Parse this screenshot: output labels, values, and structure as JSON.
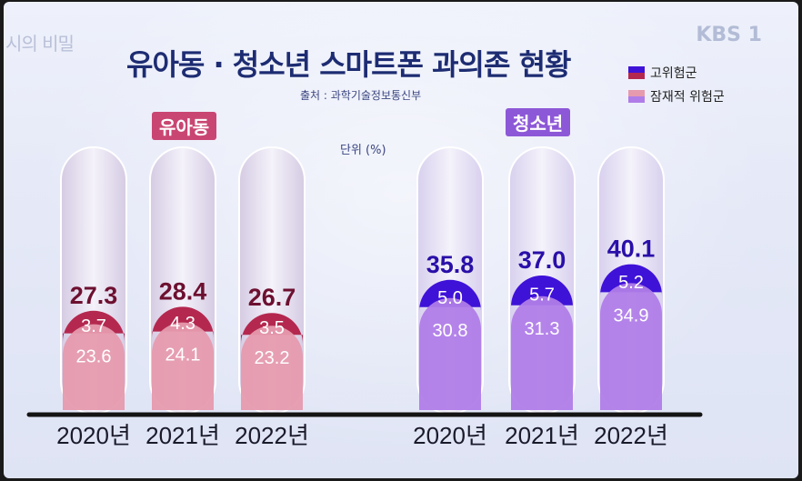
{
  "watermark": {
    "program": "시의 비밀",
    "broadcaster": "KBS 1"
  },
  "header": {
    "title": "유아동 · 청소년 스마트폰 과의존 현황",
    "source": "출처 : 과학기술정보통신부",
    "unit": "단위 (%)"
  },
  "legend": {
    "high_risk": "고위험군",
    "latent_risk": "잠재적 위험군"
  },
  "colors": {
    "kids_high": "#b4284f",
    "kids_latent": "#e69aae",
    "teens_high": "#3f12d8",
    "teens_latent": "#b07de8",
    "title": "#1d2c72"
  },
  "chart_data": {
    "type": "bar",
    "stacked": true,
    "unit": "%",
    "groups": [
      {
        "name": "유아동",
        "categories": [
          "2020년",
          "2021년",
          "2022년"
        ],
        "totals": [
          27.3,
          28.4,
          26.7
        ],
        "series": [
          {
            "name": "고위험군",
            "values": [
              3.7,
              4.3,
              3.5
            ]
          },
          {
            "name": "잠재적 위험군",
            "values": [
              23.6,
              24.1,
              23.2
            ]
          }
        ]
      },
      {
        "name": "청소년",
        "categories": [
          "2020년",
          "2021년",
          "2022년"
        ],
        "totals": [
          35.8,
          37.0,
          40.1
        ],
        "series": [
          {
            "name": "고위험군",
            "values": [
              5.0,
              5.7,
              5.2
            ]
          },
          {
            "name": "잠재적 위험군",
            "values": [
              30.8,
              31.3,
              34.9
            ]
          }
        ]
      }
    ],
    "legend_position": "top-right",
    "grid": false
  }
}
